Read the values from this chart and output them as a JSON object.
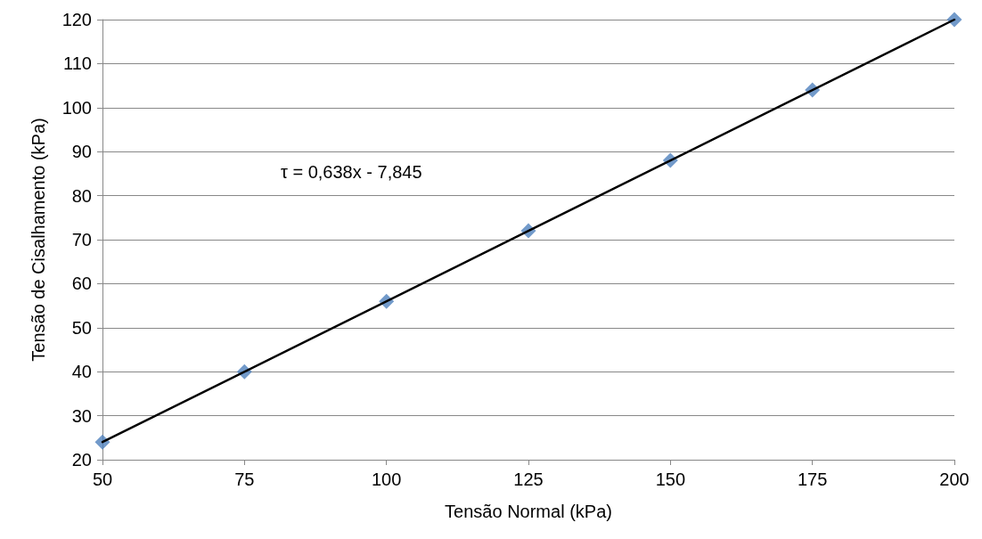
{
  "chart_data": {
    "type": "scatter",
    "xlabel": "Tensão Normal (kPa)",
    "ylabel": "Tensão de Cisalhamento (kPa)",
    "x": [
      50,
      75,
      100,
      125,
      150,
      175,
      200
    ],
    "series": [
      {
        "color": "#4f81bd",
        "marker": "diamond",
        "values": [
          24,
          40,
          56,
          72,
          88,
          104,
          120
        ]
      },
      {
        "type": "line",
        "color": "#000000",
        "marker": "none",
        "line_style": "solid",
        "x": [
          50,
          200
        ],
        "values": [
          24,
          120
        ]
      }
    ],
    "annotations": [
      "τ = 0,638x - 7,845"
    ],
    "xlim": [
      50,
      200
    ],
    "xticks": [
      50,
      75,
      100,
      125,
      150,
      175,
      200
    ],
    "ylim": [
      20,
      120
    ],
    "yticks": [
      20,
      30,
      40,
      50,
      60,
      70,
      80,
      90,
      100,
      110,
      120
    ],
    "grid": "y"
  }
}
